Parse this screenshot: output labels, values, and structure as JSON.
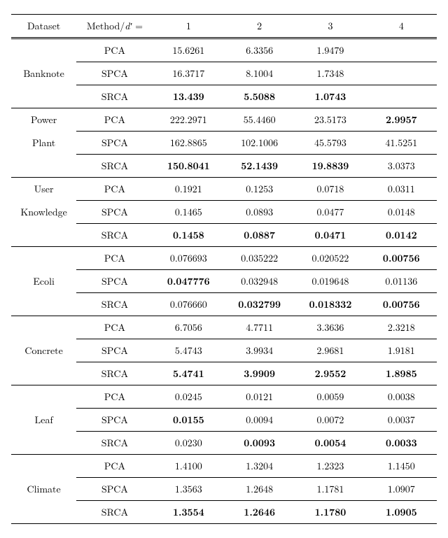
{
  "header": {
    "dataset": "Dataset",
    "method_prefix": "Method/",
    "d_prime": "d′",
    "eq": " =",
    "cols": [
      "1",
      "2",
      "3",
      "4"
    ]
  },
  "groups": [
    {
      "name_lines": [
        "Banknote"
      ],
      "rows": [
        {
          "method": "PCA",
          "vals": [
            {
              "t": "15.6261"
            },
            {
              "t": "6.3356"
            },
            {
              "t": "1.9479"
            },
            {
              "t": ""
            }
          ]
        },
        {
          "method": "SPCA",
          "vals": [
            {
              "t": "16.3717"
            },
            {
              "t": "8.1004"
            },
            {
              "t": "1.7348"
            },
            {
              "t": ""
            }
          ]
        },
        {
          "method": "SRCA",
          "vals": [
            {
              "t": "13.439",
              "b": true
            },
            {
              "t": "5.5088",
              "b": true
            },
            {
              "t": "1.0743",
              "b": true
            },
            {
              "t": ""
            }
          ]
        }
      ]
    },
    {
      "name_lines": [
        "Power",
        "Plant"
      ],
      "rows": [
        {
          "method": "PCA",
          "vals": [
            {
              "t": "222.2971"
            },
            {
              "t": "55.4460"
            },
            {
              "t": "23.5173"
            },
            {
              "t": "2.9957",
              "b": true
            }
          ]
        },
        {
          "method": "SPCA",
          "vals": [
            {
              "t": "162.8865"
            },
            {
              "t": "102.1006"
            },
            {
              "t": "45.5793"
            },
            {
              "t": "41.5251"
            }
          ]
        },
        {
          "method": "SRCA",
          "vals": [
            {
              "t": "150.8041",
              "b": true
            },
            {
              "t": "52.1439",
              "b": true
            },
            {
              "t": "19.8839",
              "b": true
            },
            {
              "t": "3.0373"
            }
          ]
        }
      ]
    },
    {
      "name_lines": [
        "User",
        "Knowledge"
      ],
      "rows": [
        {
          "method": "PCA",
          "vals": [
            {
              "t": "0.1921"
            },
            {
              "t": "0.1253"
            },
            {
              "t": "0.0718"
            },
            {
              "t": "0.0311"
            }
          ]
        },
        {
          "method": "SPCA",
          "vals": [
            {
              "t": "0.1465"
            },
            {
              "t": "0.0893"
            },
            {
              "t": "0.0477"
            },
            {
              "t": "0.0148"
            }
          ]
        },
        {
          "method": "SRCA",
          "vals": [
            {
              "t": "0.1458",
              "b": true
            },
            {
              "t": "0.0887",
              "b": true
            },
            {
              "t": "0.0471",
              "b": true
            },
            {
              "t": "0.0142",
              "b": true
            }
          ]
        }
      ]
    },
    {
      "name_lines": [
        "Ecoli"
      ],
      "rows": [
        {
          "method": "PCA",
          "vals": [
            {
              "t": "0.076693"
            },
            {
              "t": "0.035222"
            },
            {
              "t": "0.020522"
            },
            {
              "t": "0.00756",
              "b": true
            }
          ]
        },
        {
          "method": "SPCA",
          "vals": [
            {
              "t": "0.047776",
              "b": true
            },
            {
              "t": "0.032948"
            },
            {
              "t": "0.019648"
            },
            {
              "t": "0.01136"
            }
          ]
        },
        {
          "method": "SRCA",
          "vals": [
            {
              "t": "0.076660"
            },
            {
              "t": "0.032799",
              "b": true
            },
            {
              "t": "0.018332",
              "b": true
            },
            {
              "t": "0.00756",
              "b": true
            }
          ]
        }
      ]
    },
    {
      "name_lines": [
        "Concrete"
      ],
      "rows": [
        {
          "method": "PCA",
          "vals": [
            {
              "t": "6.7056"
            },
            {
              "t": "4.7711"
            },
            {
              "t": "3.3636"
            },
            {
              "t": "2.3218"
            }
          ]
        },
        {
          "method": "SPCA",
          "vals": [
            {
              "t": "5.4743"
            },
            {
              "t": "3.9934"
            },
            {
              "t": "2.9681"
            },
            {
              "t": "1.9181"
            }
          ]
        },
        {
          "method": "SRCA",
          "vals": [
            {
              "t": "5.4741",
              "b": true
            },
            {
              "t": "3.9909",
              "b": true
            },
            {
              "t": "2.9552",
              "b": true
            },
            {
              "t": "1.8985",
              "b": true
            }
          ]
        }
      ]
    },
    {
      "name_lines": [
        "Leaf"
      ],
      "rows": [
        {
          "method": "PCA",
          "vals": [
            {
              "t": "0.0245"
            },
            {
              "t": "0.0121"
            },
            {
              "t": "0.0059"
            },
            {
              "t": "0.0038"
            }
          ]
        },
        {
          "method": "SPCA",
          "vals": [
            {
              "t": "0.0155",
              "b": true
            },
            {
              "t": "0.0094"
            },
            {
              "t": "0.0072"
            },
            {
              "t": "0.0037"
            }
          ]
        },
        {
          "method": "SRCA",
          "vals": [
            {
              "t": "0.0230"
            },
            {
              "t": "0.0093",
              "b": true
            },
            {
              "t": "0.0054",
              "b": true
            },
            {
              "t": "0.0033",
              "b": true
            }
          ]
        }
      ]
    },
    {
      "name_lines": [
        "Climate"
      ],
      "rows": [
        {
          "method": "PCA",
          "vals": [
            {
              "t": "1.4100"
            },
            {
              "t": "1.3204"
            },
            {
              "t": "1.2323"
            },
            {
              "t": "1.1450"
            }
          ]
        },
        {
          "method": "SPCA",
          "vals": [
            {
              "t": "1.3563"
            },
            {
              "t": "1.2648"
            },
            {
              "t": "1.1781"
            },
            {
              "t": "1.0907"
            }
          ]
        },
        {
          "method": "SRCA",
          "vals": [
            {
              "t": "1.3554",
              "b": true
            },
            {
              "t": "1.2646",
              "b": true
            },
            {
              "t": "1.1780",
              "b": true
            },
            {
              "t": "1.0905",
              "b": true
            }
          ]
        }
      ]
    }
  ]
}
